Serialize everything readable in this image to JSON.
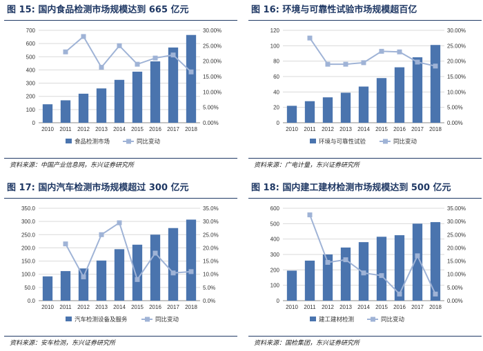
{
  "colors": {
    "bar": "#4a74ae",
    "line": "#9fb3d6",
    "marker": "#9fb3d6",
    "title": "#1f3864",
    "grid": "#d9d9d9"
  },
  "chart_data": [
    {
      "type": "bar",
      "title": "图 15: 国内食品检测市场规模达到 665 亿元",
      "categories": [
        "2010",
        "2011",
        "2012",
        "2013",
        "2014",
        "2015",
        "2016",
        "2017",
        "2018"
      ],
      "series": [
        {
          "name": "食品检测市场",
          "type": "bar",
          "axis": "left",
          "values": [
            140,
            170,
            220,
            260,
            325,
            387,
            465,
            570,
            665
          ]
        },
        {
          "name": "同比变动",
          "type": "line",
          "axis": "right",
          "values": [
            null,
            0.23,
            0.28,
            0.18,
            0.25,
            0.19,
            0.21,
            0.22,
            0.165
          ]
        }
      ],
      "ylim": [
        0,
        700
      ],
      "yticks": [
        0,
        100,
        200,
        300,
        400,
        500,
        600,
        700
      ],
      "y2lim": [
        0,
        0.3
      ],
      "y2ticks": [
        "0.00%",
        "5.00%",
        "10.00%",
        "15.00%",
        "20.00%",
        "25.00%",
        "30.00%"
      ],
      "legend": "bottom",
      "source": "资料来源：中国产业信息网，东兴证券研究所"
    },
    {
      "type": "bar",
      "title": "图 16: 环境与可靠性试验市场规模超百亿",
      "categories": [
        "2010",
        "2011",
        "2012",
        "2013",
        "2014",
        "2015",
        "2016",
        "2017",
        "2018"
      ],
      "series": [
        {
          "name": "环境与可靠性试验",
          "type": "bar",
          "axis": "left",
          "values": [
            22,
            28,
            33,
            39,
            47,
            58,
            72,
            85,
            101
          ]
        },
        {
          "name": "同比变动",
          "type": "line",
          "axis": "right",
          "values": [
            null,
            0.275,
            0.19,
            0.19,
            0.195,
            0.232,
            0.23,
            0.197,
            0.184
          ]
        }
      ],
      "ylim": [
        0,
        120
      ],
      "yticks": [
        0,
        20,
        40,
        60,
        80,
        100,
        120
      ],
      "y2lim": [
        0,
        0.3
      ],
      "y2ticks": [
        "0.00%",
        "5.00%",
        "10.00%",
        "15.00%",
        "20.00%",
        "25.00%",
        "30.00%"
      ],
      "legend": "bottom",
      "source": "资料来源：广电计量，东兴证券研究所"
    },
    {
      "type": "bar",
      "title": "图 17: 国内汽车检测市场规模超过 300 亿元",
      "categories": [
        "2010",
        "2011",
        "2012",
        "2013",
        "2014",
        "2015",
        "2016",
        "2017",
        "2018"
      ],
      "series": [
        {
          "name": "汽车检测设备及服务",
          "type": "bar",
          "axis": "left",
          "values": [
            92,
            112,
            122,
            152,
            195,
            212,
            250,
            275,
            307
          ]
        },
        {
          "name": "同比变动",
          "type": "line",
          "axis": "right",
          "values": [
            null,
            0.215,
            0.09,
            0.25,
            0.295,
            0.08,
            0.18,
            0.105,
            0.11
          ]
        }
      ],
      "ylim": [
        0,
        350
      ],
      "yticks": [
        "0.0",
        "50.0",
        "100.0",
        "150.0",
        "200.0",
        "250.0",
        "300.0",
        "350.0"
      ],
      "y2lim": [
        0,
        0.35
      ],
      "y2ticks": [
        "0.0%",
        "5.0%",
        "10.0%",
        "15.0%",
        "20.0%",
        "25.0%",
        "30.0%",
        "35.0%"
      ],
      "legend": "bottom",
      "source": "资料来源：安车检测，东兴证券研究所"
    },
    {
      "type": "bar",
      "title": "图 18: 国内建工建材检测市场规模达到 500 亿元",
      "categories": [
        "2010",
        "2011",
        "2012",
        "2013",
        "2014",
        "2015",
        "2016",
        "2017",
        "2018"
      ],
      "series": [
        {
          "name": "建工建材检测",
          "type": "bar",
          "axis": "left",
          "values": [
            195,
            260,
            300,
            345,
            380,
            415,
            425,
            500,
            510
          ]
        },
        {
          "name": "同比变动",
          "type": "line",
          "axis": "right",
          "values": [
            null,
            0.325,
            0.145,
            0.155,
            0.105,
            0.095,
            0.025,
            0.17,
            0.025
          ]
        }
      ],
      "ylim": [
        0,
        600
      ],
      "yticks": [
        0,
        100,
        200,
        300,
        400,
        500,
        600
      ],
      "y2lim": [
        0,
        0.35
      ],
      "y2ticks": [
        "0.00%",
        "5.00%",
        "10.00%",
        "15.00%",
        "20.00%",
        "25.00%",
        "30.00%",
        "35.00%"
      ],
      "legend": "bottom",
      "source": "资料来源：国检集团，东兴证券研究所"
    }
  ]
}
